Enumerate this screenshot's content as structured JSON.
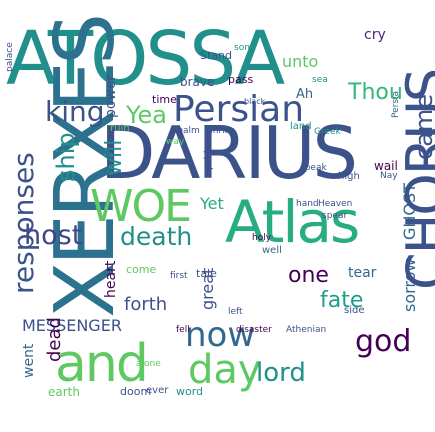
{
  "word_cloud": {
    "words": [
      {
        "text": "ATOSSA",
        "color": "#21908d"
      },
      {
        "text": "DARIUS",
        "color": "#3b528b"
      },
      {
        "text": "XERXES",
        "color": "#2c728e"
      },
      {
        "text": "Atlas",
        "color": "#27ad81"
      },
      {
        "text": "Persian",
        "color": "#3b528b"
      },
      {
        "text": "king",
        "color": "#3b528b"
      },
      {
        "text": "Yea",
        "color": "#5ec962"
      },
      {
        "text": "WOE",
        "color": "#5ec962"
      },
      {
        "text": "host",
        "color": "#414487"
      },
      {
        "text": "death",
        "color": "#21908d"
      },
      {
        "text": "and",
        "color": "#5ec962"
      },
      {
        "text": "day",
        "color": "#5ec962"
      },
      {
        "text": "now",
        "color": "#31688e"
      },
      {
        "text": "god",
        "color": "#440154"
      },
      {
        "text": "lord",
        "color": "#21908d"
      },
      {
        "text": "one",
        "color": "#440154"
      },
      {
        "text": "fate",
        "color": "#1f9e89"
      },
      {
        "text": "sorrow",
        "color": "#31688e"
      },
      {
        "text": "GHOST",
        "color": "#31688e"
      },
      {
        "text": "CHORUS",
        "color": "#3b528b"
      },
      {
        "text": "came",
        "color": "#3b528b"
      },
      {
        "text": "Thou",
        "color": "#35b779"
      },
      {
        "text": "responses",
        "color": "#3b528b"
      },
      {
        "text": "ship",
        "color": "#21908d"
      },
      {
        "text": "power",
        "color": "#3b528b"
      },
      {
        "text": "will",
        "color": "#21908d"
      },
      {
        "text": "MESSENGER",
        "color": "#3b528b"
      },
      {
        "text": "forth",
        "color": "#3b528b"
      },
      {
        "text": "heart",
        "color": "#440154"
      },
      {
        "text": "dead",
        "color": "#440154"
      },
      {
        "text": "went",
        "color": "#31688e"
      },
      {
        "text": "earth",
        "color": "#5ec962"
      },
      {
        "text": "doom",
        "color": "#3b528b"
      },
      {
        "text": "word",
        "color": "#21908d"
      },
      {
        "text": "great",
        "color": "#3b528b"
      },
      {
        "text": "cry",
        "color": "#482878"
      },
      {
        "text": "tear",
        "color": "#31688e"
      },
      {
        "text": "Stand",
        "color": "#3b528b"
      },
      {
        "text": "unto",
        "color": "#5ec962"
      },
      {
        "text": "brave",
        "color": "#3b528b"
      },
      {
        "text": "pass",
        "color": "#440154"
      },
      {
        "text": "time",
        "color": "#440154"
      },
      {
        "text": "ruin",
        "color": "#5ec962"
      },
      {
        "text": "Yet",
        "color": "#27ad81"
      },
      {
        "text": "hand",
        "color": "#3b528b"
      },
      {
        "text": "Heaven",
        "color": "#3b528b"
      },
      {
        "text": "high",
        "color": "#3b528b"
      },
      {
        "text": "wail",
        "color": "#440154"
      },
      {
        "text": "Nay",
        "color": "#3b528b"
      },
      {
        "text": "speak",
        "color": "#3b528b"
      },
      {
        "text": "tale",
        "color": "#3b528b"
      },
      {
        "text": "disaster",
        "color": "#440154"
      },
      {
        "text": "Athenian",
        "color": "#3b528b"
      },
      {
        "text": "sea",
        "color": "#21908d"
      },
      {
        "text": "well",
        "color": "#31688e"
      },
      {
        "text": "Ah",
        "color": "#31688e"
      },
      {
        "text": "Greek",
        "color": "#21908d"
      },
      {
        "text": "realm",
        "color": "#3b528b"
      },
      {
        "text": "shrike",
        "color": "#3b528b"
      },
      {
        "text": "black",
        "color": "#3b528b"
      },
      {
        "text": "way",
        "color": "#5ec962"
      },
      {
        "text": "son",
        "color": "#21908d"
      },
      {
        "text": "pride",
        "color": "#3b528b"
      },
      {
        "text": "palace",
        "color": "#3b528b"
      },
      {
        "text": "Persia",
        "color": "#31688e"
      },
      {
        "text": "land",
        "color": "#21908d"
      },
      {
        "text": "left",
        "color": "#3b528b"
      },
      {
        "text": "ever",
        "color": "#3b528b"
      },
      {
        "text": "side",
        "color": "#3b528b"
      },
      {
        "text": "alone",
        "color": "#5ec962"
      },
      {
        "text": "fell",
        "color": "#440154"
      },
      {
        "text": "first",
        "color": "#3b528b"
      },
      {
        "text": "come",
        "color": "#5ec962"
      },
      {
        "text": "holy",
        "color": "#440154"
      },
      {
        "text": "spear",
        "color": "#3b528b"
      }
    ]
  }
}
